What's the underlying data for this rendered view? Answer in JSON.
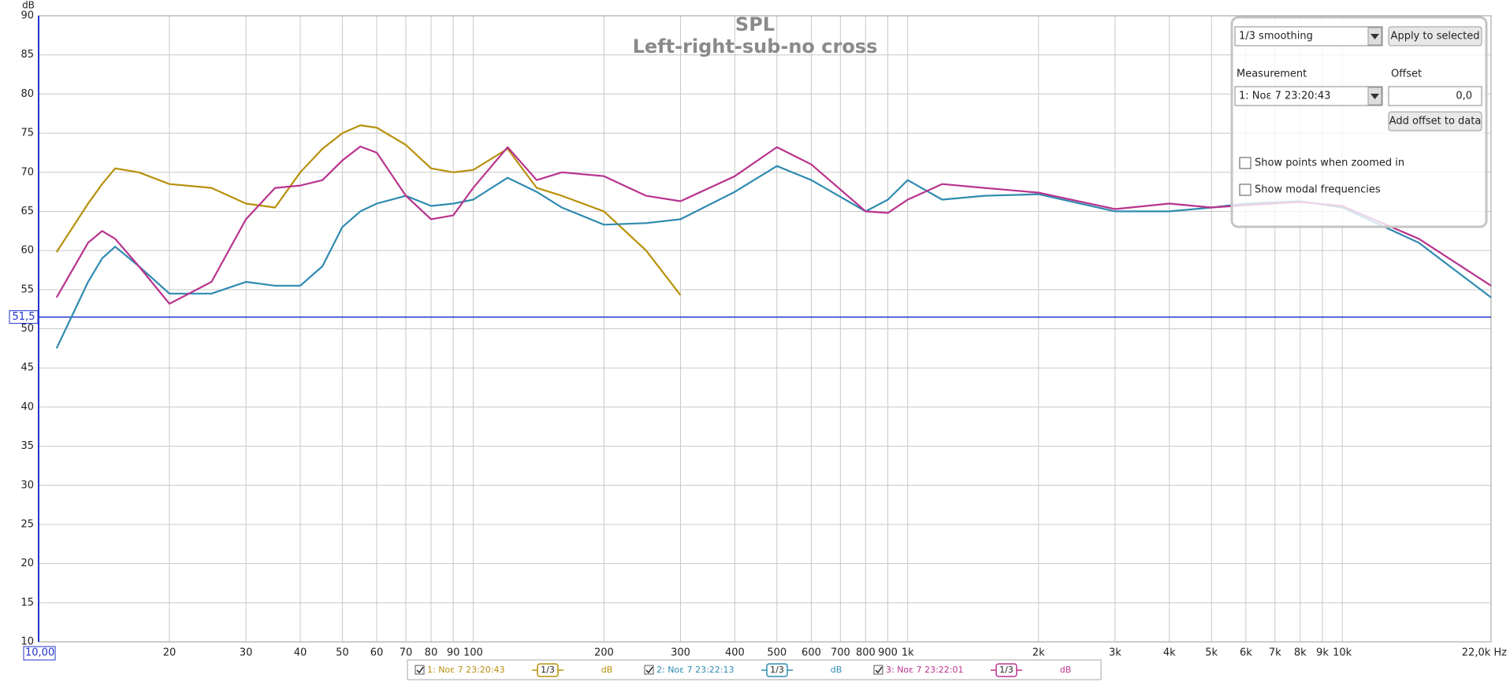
{
  "chart_data": {
    "type": "line",
    "title": "SPL",
    "subtitle": "Left-right-sub-no cross",
    "ylabel": "dB",
    "log_x": true,
    "grid": true,
    "x": [
      11,
      13,
      14,
      15,
      17,
      20,
      25,
      30,
      35,
      40,
      45,
      50,
      55,
      60,
      70,
      80,
      90,
      100,
      120,
      140,
      160,
      200,
      250,
      300,
      400,
      500,
      600,
      800,
      900,
      1000,
      1200,
      1500,
      2000,
      3000,
      4000,
      5000,
      6000,
      8000,
      10000,
      15000,
      22000
    ],
    "series": [
      {
        "name": "1: Νοε 7 23:20:43",
        "smoothing": "1/3",
        "unit": "dB",
        "color": "#b8900c",
        "values": [
          59.8,
          66,
          68.5,
          70.5,
          70,
          68.5,
          68,
          66,
          65.5,
          70,
          73,
          75,
          76,
          75.7,
          73.5,
          70.5,
          70,
          70.3,
          73,
          68,
          67,
          65,
          60,
          54.3,
          null,
          null,
          null,
          null,
          null,
          null,
          null,
          null,
          null,
          null,
          null,
          null,
          null,
          null,
          null,
          null,
          null
        ]
      },
      {
        "name": "2: Νοε 7 23:22:13",
        "smoothing": "1/3",
        "unit": "dB",
        "color": "#2f8bb0",
        "values": [
          47.5,
          56,
          59,
          60.5,
          58,
          54.5,
          54.5,
          56,
          55.5,
          55.5,
          58,
          63,
          65,
          66,
          67,
          65.7,
          66,
          66.5,
          69.3,
          67.5,
          65.5,
          63.3,
          63.5,
          64,
          67.5,
          70.8,
          69,
          65,
          66.5,
          69,
          66.5,
          67,
          67.2,
          65,
          65,
          65.5,
          66,
          66.3,
          65.5,
          61,
          54
        ]
      },
      {
        "name": "3: Νοε 7 23:22:01",
        "smoothing": "1/3",
        "unit": "dB",
        "color": "#b8338e",
        "values": [
          54,
          61,
          62.5,
          61.5,
          58,
          53.2,
          56,
          64,
          68,
          68.3,
          69,
          71.5,
          73.3,
          72.5,
          67,
          64,
          64.5,
          68,
          73.2,
          69,
          70,
          69.5,
          67,
          66.3,
          69.5,
          73.2,
          71,
          65,
          64.8,
          66.5,
          68.5,
          68,
          67.4,
          65.3,
          66,
          65.5,
          65.8,
          66.2,
          65.7,
          61.5,
          55.5
        ]
      }
    ],
    "xlim": [
      10,
      22000
    ],
    "ylim": [
      10,
      90
    ],
    "xticks": [
      {
        "value": 10,
        "label": "10,00"
      },
      20,
      30,
      40,
      50,
      60,
      70,
      80,
      90,
      100,
      200,
      300,
      400,
      500,
      600,
      700,
      800,
      900,
      {
        "value": 1000,
        "label": "1k"
      },
      {
        "value": 2000,
        "label": "2k"
      },
      {
        "value": 3000,
        "label": "3k"
      },
      {
        "value": 4000,
        "label": "4k"
      },
      {
        "value": 5000,
        "label": "5k"
      },
      {
        "value": 6000,
        "label": "6k"
      },
      {
        "value": 7000,
        "label": "7k"
      },
      {
        "value": 8000,
        "label": "8k"
      },
      {
        "value": 9000,
        "label": "9k"
      },
      {
        "value": 10000,
        "label": "10k"
      },
      {
        "value": 22000,
        "label": "22,0k Hz"
      }
    ],
    "yticks": [
      10,
      15,
      20,
      25,
      30,
      35,
      40,
      45,
      50,
      55,
      60,
      65,
      70,
      75,
      80,
      85,
      90
    ],
    "cursor": {
      "value": 51.5,
      "label": "51,5"
    }
  },
  "panel": {
    "smoothing": "1/3 smoothing",
    "apply": "Apply to selected",
    "measurement_label": "Measurement",
    "offset_label": "Offset",
    "measurement": "1: Νοε 7 23:20:43",
    "offset": "0,0",
    "add_offset": "Add offset to data",
    "show_points": "Show points when zoomed in",
    "show_modal": "Show modal frequencies"
  }
}
